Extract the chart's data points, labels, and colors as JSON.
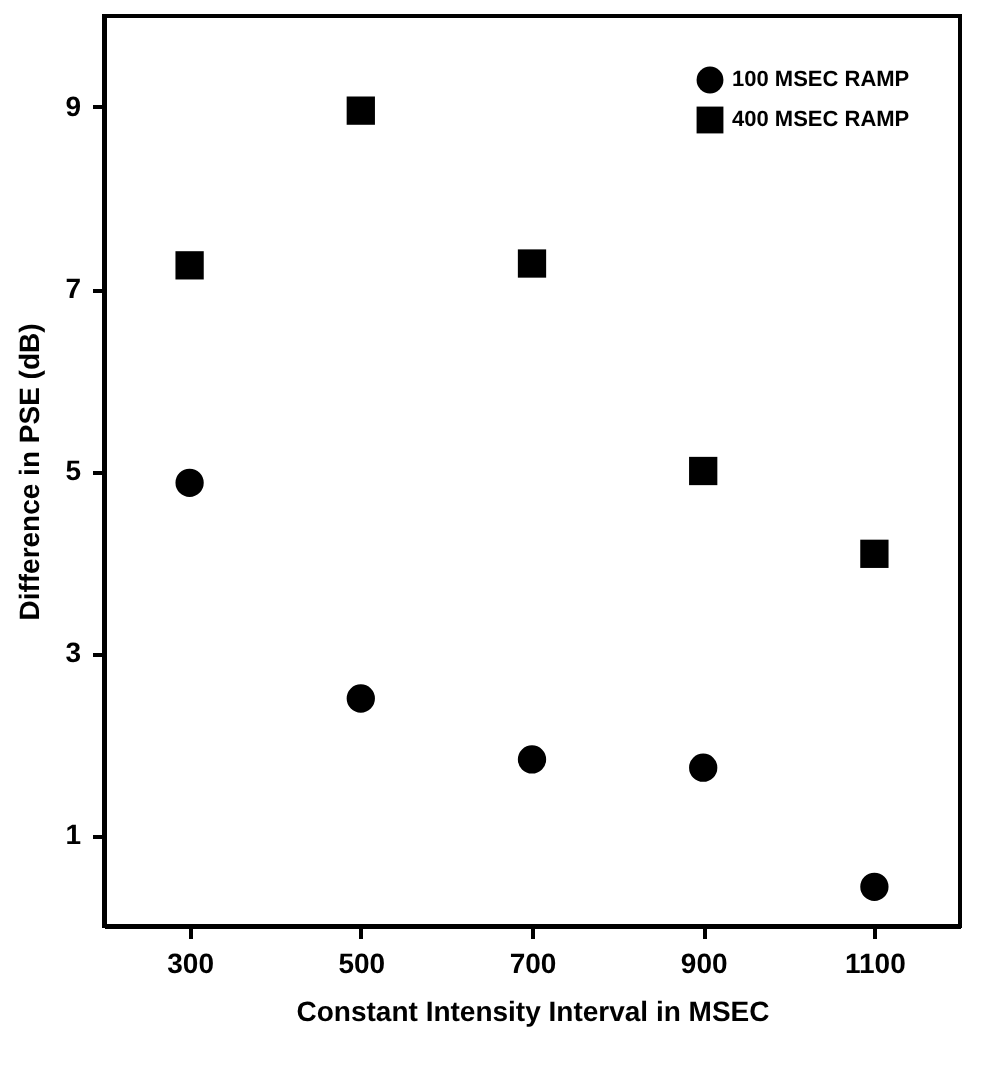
{
  "chart_data": {
    "type": "scatter",
    "xlabel": "Constant  Intensity Interval in MSEC",
    "ylabel": "Difference in PSE (dB)",
    "x": [
      300,
      500,
      700,
      900,
      1100
    ],
    "series": [
      {
        "name": "100 MSEC RAMP",
        "color": "#000000",
        "marker": "circle",
        "values": [
          4.87,
          2.5,
          1.83,
          1.74,
          0.43
        ]
      },
      {
        "name": "400 MSEC RAMP",
        "color": "#000000",
        "marker": "square",
        "values": [
          7.26,
          8.96,
          7.28,
          5.0,
          4.09
        ]
      }
    ],
    "xlim": [
      200,
      1200
    ],
    "xticks": [
      300,
      500,
      700,
      900,
      1100
    ],
    "ylim": [
      0,
      10
    ],
    "yticks": [
      1,
      3,
      5,
      7,
      9
    ],
    "grid": false,
    "legend": "top right"
  }
}
